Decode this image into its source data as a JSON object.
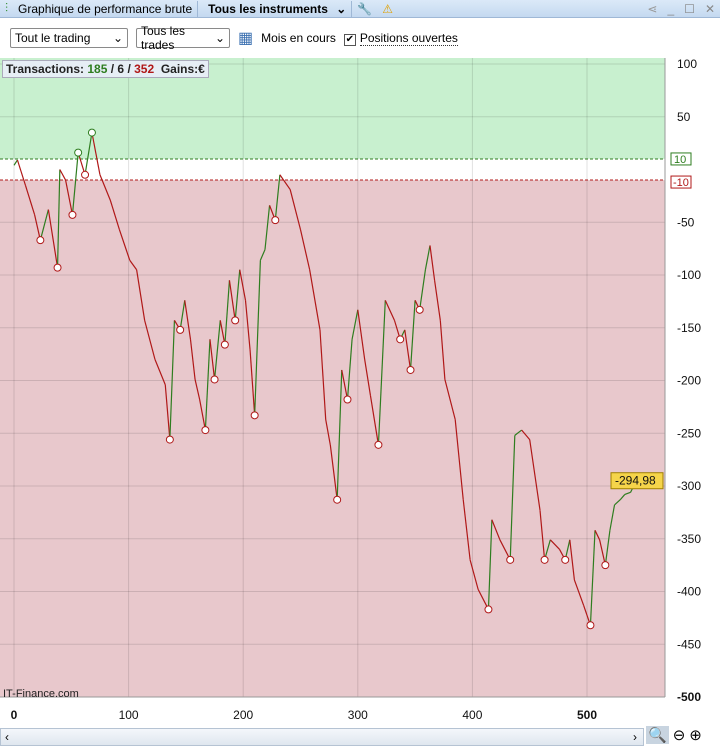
{
  "window": {
    "title": "Graphique de performance brute",
    "instrument": "Tous les instruments",
    "icons": [
      "chart-icon",
      "wrench-icon",
      "warning-icon",
      "share-icon",
      "minimize-icon",
      "maximize-icon",
      "close-icon"
    ]
  },
  "toolbar": {
    "period": "Tout le trading",
    "trades": "Tous les trades",
    "month_label": "Mois en cours",
    "open_positions": "Positions ouvertes",
    "open_positions_checked": true
  },
  "stats": {
    "label": "Transactions:",
    "wins": "185",
    "neutral": "6",
    "losses": "352",
    "gains_label": "Gains:",
    "currency": "€"
  },
  "watermark": "IT-Finance.com",
  "chart_data": {
    "type": "line",
    "xlim": [
      -10,
      570
    ],
    "ylim": [
      -500,
      100
    ],
    "x_ticks": [
      0,
      100,
      200,
      300,
      400,
      500
    ],
    "y_ticks": [
      100,
      50,
      -50,
      -100,
      -150,
      -200,
      -250,
      -300,
      -350,
      -400,
      -450,
      -500
    ],
    "upper_threshold": 10,
    "lower_threshold": -10,
    "last_value_label": "-294,98",
    "grid": true,
    "colors": {
      "up": "#2e7d1f",
      "down": "#b01818",
      "green_zone": "#c8f0cf",
      "red_zone": "#e8c8cc"
    },
    "x": [
      0,
      3,
      10,
      18,
      23,
      30,
      38,
      40,
      45,
      51,
      56,
      62,
      68,
      75,
      84,
      92,
      101,
      107,
      114,
      123,
      132,
      136,
      140,
      145,
      149,
      154,
      158,
      162,
      167,
      171,
      175,
      180,
      184,
      188,
      193,
      197,
      202,
      206,
      210,
      215,
      219,
      223,
      228,
      232,
      241,
      250,
      258,
      267,
      272,
      276,
      282,
      286,
      291,
      295,
      300,
      306,
      311,
      318,
      324,
      332,
      337,
      341,
      346,
      350,
      354,
      359,
      363,
      367,
      372,
      376,
      385,
      392,
      398,
      405,
      414,
      417,
      424,
      433,
      437,
      443,
      450,
      459,
      463,
      468,
      476,
      481,
      485,
      489,
      497,
      503,
      507,
      511,
      516,
      520,
      524,
      529,
      533,
      538,
      543
    ],
    "y": [
      4,
      9,
      -15,
      -43,
      -67,
      -38,
      -93,
      0,
      -10,
      -43,
      16,
      -5,
      35,
      -5,
      -29,
      -57,
      -86,
      -95,
      -143,
      -180,
      -204,
      -256,
      -143,
      -152,
      -124,
      -161,
      -199,
      -218,
      -247,
      -161,
      -199,
      -143,
      -166,
      -105,
      -143,
      -95,
      -124,
      -171,
      -233,
      -86,
      -76,
      -34,
      -48,
      -5,
      -19,
      -57,
      -95,
      -152,
      -237,
      -261,
      -313,
      -190,
      -218,
      -161,
      -133,
      -180,
      -214,
      -261,
      -124,
      -143,
      -161,
      -152,
      -190,
      -124,
      -133,
      -95,
      -72,
      -105,
      -143,
      -199,
      -237,
      -313,
      -370,
      -398,
      -417,
      -332,
      -351,
      -370,
      -252,
      -247,
      -256,
      -323,
      -370,
      -351,
      -360,
      -370,
      -351,
      -389,
      -413,
      -432,
      -342,
      -351,
      -375,
      -342,
      -318,
      -313,
      -308,
      -306,
      -295
    ]
  },
  "footer": {
    "zoom_icons": [
      "zoom-fit-icon",
      "zoom-out-icon",
      "zoom-in-icon"
    ]
  }
}
